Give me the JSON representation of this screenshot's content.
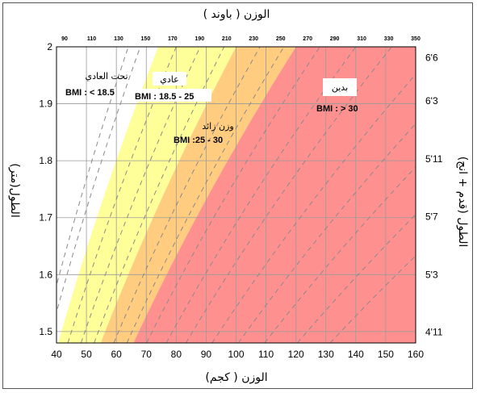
{
  "chart_data": {
    "type": "area",
    "x_bottom": {
      "label": "الوزن ( كجم)",
      "ticks": [
        40,
        50,
        60,
        70,
        80,
        90,
        100,
        110,
        120,
        130,
        140,
        150,
        160
      ],
      "range": [
        40,
        160
      ]
    },
    "x_top": {
      "label": "الوزن ( باوند )",
      "ticks": [
        90,
        110,
        130,
        150,
        170,
        190,
        210,
        230,
        250,
        270,
        290,
        310,
        330,
        350
      ]
    },
    "y_left": {
      "label": "الطول(متر)",
      "ticks": [
        1.5,
        1.6,
        1.7,
        1.8,
        1.9,
        2
      ],
      "range": [
        1.48,
        2.0
      ]
    },
    "y_right": {
      "label": "الطول (قدم + انج)",
      "ticks": [
        "4'11",
        "5'3",
        "5'7",
        "5'11",
        "6'3",
        "6'6"
      ]
    },
    "grid": true,
    "zones": [
      {
        "name": "تحت العادي",
        "bmi_label": "BMI : < 18.5",
        "bmi_min": 0,
        "bmi_max": 18.5,
        "color": "#ffffff"
      },
      {
        "name": "عادي",
        "bmi_label": "BMI : 18.5 - 25",
        "bmi_min": 18.5,
        "bmi_max": 25,
        "color": "#ffff99"
      },
      {
        "name": "وزن زائد",
        "bmi_label": "BMI :25 - 30",
        "bmi_min": 25,
        "bmi_max": 30,
        "color": "#ffcc80"
      },
      {
        "name": "بدين",
        "bmi_label": "BMI : > 30",
        "bmi_min": 30,
        "bmi_max": 100,
        "color": "#ff9090"
      }
    ],
    "dashed_bmi_lines": [
      16,
      17,
      20,
      22,
      24,
      27,
      29,
      32,
      35,
      38,
      42,
      46,
      50,
      55,
      60
    ]
  }
}
